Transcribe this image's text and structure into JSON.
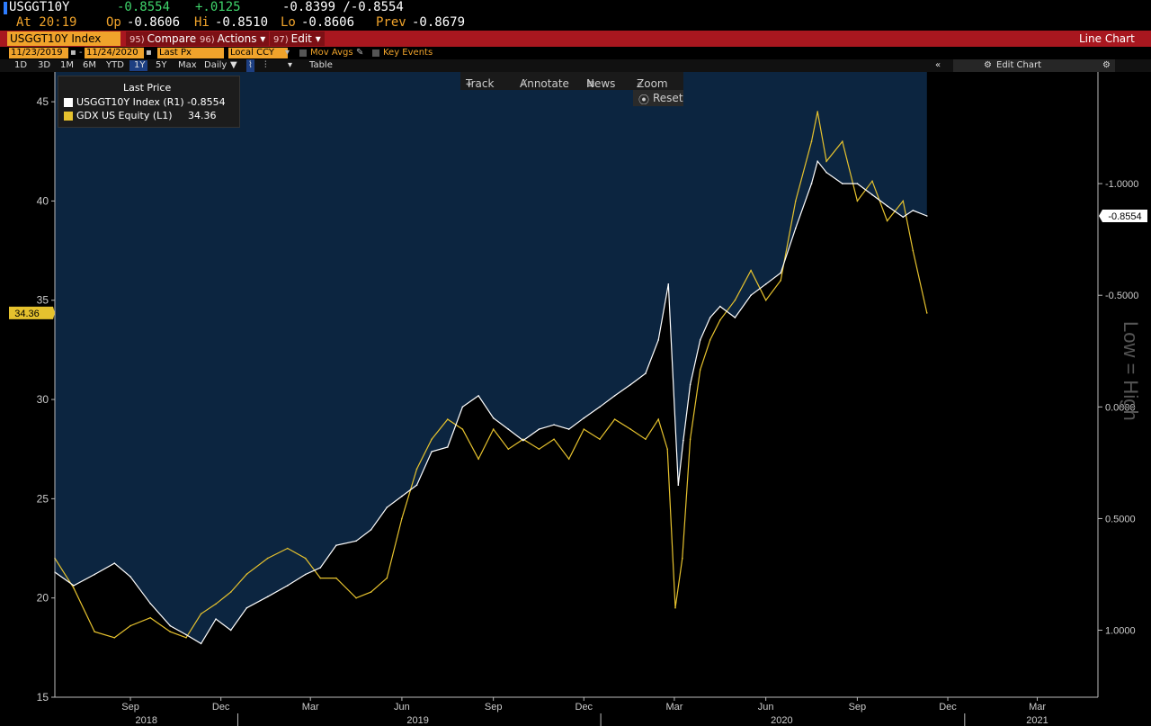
{
  "quote": {
    "ticker": "USGGT10Y",
    "last": "-0.8554",
    "change": "+.0125",
    "range": "-0.8399 /-0.8554",
    "time": "At 20:19",
    "open_label": "Op",
    "open": "-0.8606",
    "high_label": "Hi",
    "high": "-0.8510",
    "low_label": "Lo",
    "low": "-0.8606",
    "prev_label": "Prev",
    "prev": "-0.8679"
  },
  "toolbar": {
    "security": "USGGT10Y Index",
    "compare_num": "95)",
    "compare": "Compare",
    "actions_num": "96)",
    "actions": "Actions",
    "edit_num": "97)",
    "edit": "Edit",
    "chart_type": "Line Chart"
  },
  "settings": {
    "start_date": "11/23/2019",
    "end_date": "11/24/2020",
    "field": "Last Px",
    "currency": "Local CCY",
    "mov_avgs": "Mov Avgs",
    "key_events": "Key Events"
  },
  "periods": [
    "1D",
    "3D",
    "1M",
    "6M",
    "YTD",
    "1Y",
    "5Y",
    "Max"
  ],
  "selected_period": "1Y",
  "frequency": "Daily",
  "table_label": "Table",
  "edit_chart": "Edit Chart",
  "chart_tools": {
    "track": "Track",
    "annotate": "Annotate",
    "news": "News",
    "zoom": "Zoom",
    "reset": "Reset"
  },
  "legend": {
    "header": "Last Price",
    "items": [
      {
        "label": "USGGT10Y Index  (R1)",
        "value": "-0.8554",
        "color": "#ffffff"
      },
      {
        "label": "GDX US Equity  (L1)",
        "value": "34.36",
        "color": "#e6c22e"
      }
    ]
  },
  "colors": {
    "up": "#3fd46b",
    "quote_label": "#f0a32b",
    "area_fill": "#0c2540",
    "gdx_line": "#e6c22e",
    "tips_line": "#ffffff",
    "redbar": "#a8171f"
  },
  "chart_data": {
    "type": "line",
    "title": "",
    "right_axis_label": "Low = High",
    "left_axis": {
      "ticks": [
        15,
        20,
        25,
        30,
        35,
        40,
        45
      ],
      "range": [
        15,
        46.5
      ]
    },
    "right_axis": {
      "ticks": [
        "-1.0000",
        "-0.5000",
        "0.0000",
        "0.5000",
        "1.0000"
      ],
      "values": [
        -1.0,
        -0.5,
        0.0,
        0.5,
        1.0
      ],
      "range": [
        1.3,
        -1.5
      ],
      "inverted": true
    },
    "last_badges": {
      "left": "34.36",
      "right": "-0.8554"
    },
    "x_months": [
      "Sep",
      "Dec",
      "Mar",
      "Jun",
      "Sep",
      "Dec",
      "Mar",
      "Jun",
      "Sep",
      "Dec",
      "Mar"
    ],
    "x_years": [
      "2018",
      "2019",
      "2020",
      "2021"
    ],
    "x_range": [
      "2018-07-01",
      "2021-05-15"
    ],
    "series": [
      {
        "name": "GDX US Equity (L1)",
        "axis": "left",
        "x": [
          "2018-07-01",
          "2018-07-20",
          "2018-08-10",
          "2018-08-30",
          "2018-09-15",
          "2018-10-05",
          "2018-10-25",
          "2018-11-10",
          "2018-11-25",
          "2018-12-10",
          "2018-12-25",
          "2019-01-10",
          "2019-01-31",
          "2019-02-20",
          "2019-03-10",
          "2019-03-25",
          "2019-04-10",
          "2019-04-30",
          "2019-05-15",
          "2019-05-31",
          "2019-06-15",
          "2019-06-30",
          "2019-07-15",
          "2019-07-31",
          "2019-08-15",
          "2019-08-31",
          "2019-09-15",
          "2019-09-30",
          "2019-10-15",
          "2019-10-31",
          "2019-11-15",
          "2019-11-30",
          "2019-12-15",
          "2019-12-31",
          "2020-01-15",
          "2020-01-31",
          "2020-02-15",
          "2020-02-28",
          "2020-03-08",
          "2020-03-16",
          "2020-03-23",
          "2020-03-31",
          "2020-04-10",
          "2020-04-20",
          "2020-04-30",
          "2020-05-15",
          "2020-05-31",
          "2020-06-15",
          "2020-06-30",
          "2020-07-15",
          "2020-07-31",
          "2020-08-06",
          "2020-08-15",
          "2020-08-31",
          "2020-09-15",
          "2020-09-30",
          "2020-10-15",
          "2020-10-31",
          "2020-11-10",
          "2020-11-24"
        ],
        "values": [
          22.0,
          20.5,
          18.3,
          18.0,
          18.6,
          19.0,
          18.3,
          18.0,
          19.2,
          19.7,
          20.3,
          21.2,
          22.0,
          22.5,
          22.0,
          21.0,
          21.0,
          20.0,
          20.3,
          21.0,
          24.0,
          26.5,
          28.0,
          29.0,
          28.5,
          27.0,
          28.5,
          27.5,
          28.0,
          27.5,
          28.0,
          27.0,
          28.5,
          28.0,
          29.0,
          28.5,
          28.0,
          29.0,
          27.5,
          19.5,
          22.0,
          28.0,
          31.5,
          33.0,
          34.0,
          35.0,
          36.5,
          35.0,
          36.0,
          40.0,
          43.0,
          44.5,
          42.0,
          43.0,
          40.0,
          41.0,
          39.0,
          40.0,
          37.5,
          34.36
        ]
      },
      {
        "name": "USGGT10Y Index (R1)",
        "axis": "right",
        "x": [
          "2018-07-01",
          "2018-07-20",
          "2018-08-10",
          "2018-08-30",
          "2018-09-15",
          "2018-10-05",
          "2018-10-25",
          "2018-11-10",
          "2018-11-25",
          "2018-12-10",
          "2018-12-25",
          "2019-01-10",
          "2019-01-31",
          "2019-02-20",
          "2019-03-10",
          "2019-03-25",
          "2019-04-10",
          "2019-04-30",
          "2019-05-15",
          "2019-05-31",
          "2019-06-15",
          "2019-06-30",
          "2019-07-15",
          "2019-07-31",
          "2019-08-15",
          "2019-08-31",
          "2019-09-15",
          "2019-09-30",
          "2019-10-15",
          "2019-10-31",
          "2019-11-15",
          "2019-11-30",
          "2019-12-15",
          "2019-12-31",
          "2020-01-15",
          "2020-01-31",
          "2020-02-15",
          "2020-02-28",
          "2020-03-09",
          "2020-03-19",
          "2020-03-24",
          "2020-03-31",
          "2020-04-10",
          "2020-04-20",
          "2020-04-30",
          "2020-05-15",
          "2020-05-31",
          "2020-06-15",
          "2020-06-30",
          "2020-07-15",
          "2020-07-31",
          "2020-08-06",
          "2020-08-15",
          "2020-08-31",
          "2020-09-15",
          "2020-09-30",
          "2020-10-15",
          "2020-10-31",
          "2020-11-10",
          "2020-11-24"
        ],
        "values": [
          0.74,
          0.8,
          0.75,
          0.7,
          0.76,
          0.88,
          0.98,
          1.02,
          1.06,
          0.95,
          1.0,
          0.9,
          0.85,
          0.8,
          0.75,
          0.72,
          0.62,
          0.6,
          0.55,
          0.45,
          0.4,
          0.35,
          0.2,
          0.18,
          0.0,
          -0.05,
          0.05,
          0.1,
          0.15,
          0.1,
          0.08,
          0.1,
          0.05,
          0.0,
          -0.05,
          -0.1,
          -0.15,
          -0.3,
          -0.55,
          0.35,
          0.15,
          -0.1,
          -0.3,
          -0.4,
          -0.45,
          -0.4,
          -0.5,
          -0.55,
          -0.6,
          -0.8,
          -1.0,
          -1.1,
          -1.05,
          -1.0,
          -1.0,
          -0.95,
          -0.9,
          -0.85,
          -0.88,
          -0.8554
        ]
      }
    ]
  }
}
